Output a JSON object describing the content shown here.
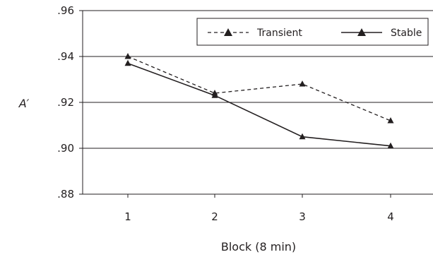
{
  "chart_data": {
    "type": "line",
    "categories": [
      "1",
      "2",
      "3",
      "4"
    ],
    "xlabel": "Block (8 min)",
    "ylabel": "A′",
    "ylim": [
      0.88,
      0.96
    ],
    "yticks": [
      ".88",
      ".90",
      ".92",
      ".94",
      ".96"
    ],
    "grid": true,
    "legend_position": "top-right",
    "series": [
      {
        "name": "Transient",
        "style": "dashed",
        "marker": "triangle",
        "color": "#231f20",
        "values": [
          0.94,
          0.924,
          0.928,
          0.912
        ]
      },
      {
        "name": "Stable",
        "style": "solid",
        "marker": "triangle",
        "color": "#231f20",
        "values": [
          0.937,
          0.923,
          0.905,
          0.901
        ]
      }
    ]
  }
}
